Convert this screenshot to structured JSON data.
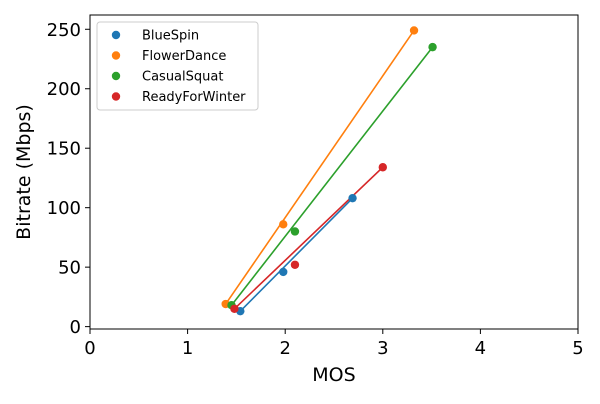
{
  "chart_data": {
    "type": "scatter",
    "xlabel": "MOS",
    "ylabel": "Bitrate (Mbps)",
    "xlim": [
      0,
      5
    ],
    "ylim": [
      -2,
      262
    ],
    "xticks": [
      0,
      1,
      2,
      3,
      4,
      5
    ],
    "yticks": [
      0,
      50,
      100,
      150,
      200,
      250
    ],
    "xtick_labels": [
      "0",
      "1",
      "2",
      "3",
      "4",
      "5"
    ],
    "ytick_labels": [
      "0",
      "50",
      "100",
      "150",
      "200",
      "250"
    ],
    "grid": false,
    "legend_position": "top-left",
    "series": [
      {
        "name": "BlueSpin",
        "color": "#1f77b4",
        "points": [
          {
            "x": 1.54,
            "y": 13
          },
          {
            "x": 1.98,
            "y": 46
          },
          {
            "x": 2.69,
            "y": 108
          }
        ],
        "line": [
          {
            "x": 1.54,
            "y": 13
          },
          {
            "x": 2.69,
            "y": 108
          }
        ]
      },
      {
        "name": "FlowerDance",
        "color": "#ff7f0e",
        "points": [
          {
            "x": 1.39,
            "y": 19
          },
          {
            "x": 1.98,
            "y": 86
          },
          {
            "x": 3.32,
            "y": 249
          }
        ],
        "line": [
          {
            "x": 1.39,
            "y": 19
          },
          {
            "x": 3.32,
            "y": 249
          }
        ]
      },
      {
        "name": "CasualSquat",
        "color": "#2ca02c",
        "points": [
          {
            "x": 1.45,
            "y": 18
          },
          {
            "x": 2.1,
            "y": 80
          },
          {
            "x": 3.51,
            "y": 235
          }
        ],
        "line": [
          {
            "x": 1.45,
            "y": 18
          },
          {
            "x": 3.51,
            "y": 235
          }
        ]
      },
      {
        "name": "ReadyForWinter",
        "color": "#d62728",
        "points": [
          {
            "x": 1.48,
            "y": 15
          },
          {
            "x": 2.1,
            "y": 52
          },
          {
            "x": 3.0,
            "y": 134
          }
        ],
        "line": [
          {
            "x": 1.48,
            "y": 15
          },
          {
            "x": 3.0,
            "y": 134
          }
        ]
      }
    ]
  }
}
